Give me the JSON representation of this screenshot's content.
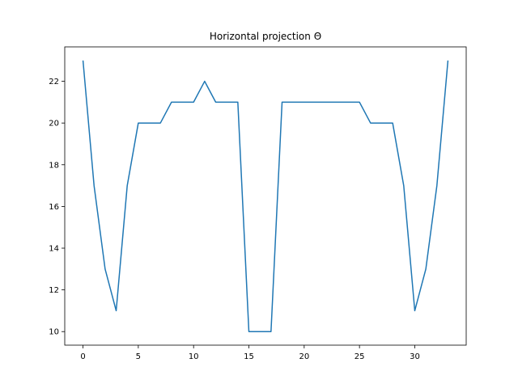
{
  "chart_data": {
    "type": "line",
    "title": "Horizontal projection Θ",
    "xlabel": "",
    "ylabel": "",
    "x": [
      0,
      1,
      2,
      3,
      4,
      5,
      6,
      7,
      8,
      9,
      10,
      11,
      12,
      13,
      14,
      15,
      16,
      17,
      18,
      19,
      20,
      21,
      22,
      23,
      24,
      25,
      26,
      27,
      28,
      29,
      30,
      31,
      32,
      33
    ],
    "series": [
      {
        "values": [
          23,
          17,
          13,
          11,
          17,
          20,
          20,
          20,
          21,
          21,
          21,
          22,
          21,
          21,
          21,
          10,
          10,
          10,
          21,
          21,
          21,
          21,
          21,
          21,
          21,
          21,
          20,
          20,
          20,
          17,
          11,
          13,
          17,
          23
        ],
        "color": "#1f77b4"
      }
    ],
    "xlim": [
      -1.65,
      34.65
    ],
    "ylim": [
      9.35,
      23.65
    ],
    "xticks": [
      0,
      5,
      10,
      15,
      20,
      25,
      30
    ],
    "yticks": [
      10,
      12,
      14,
      16,
      18,
      20,
      22
    ],
    "grid": false,
    "legend": "none"
  }
}
